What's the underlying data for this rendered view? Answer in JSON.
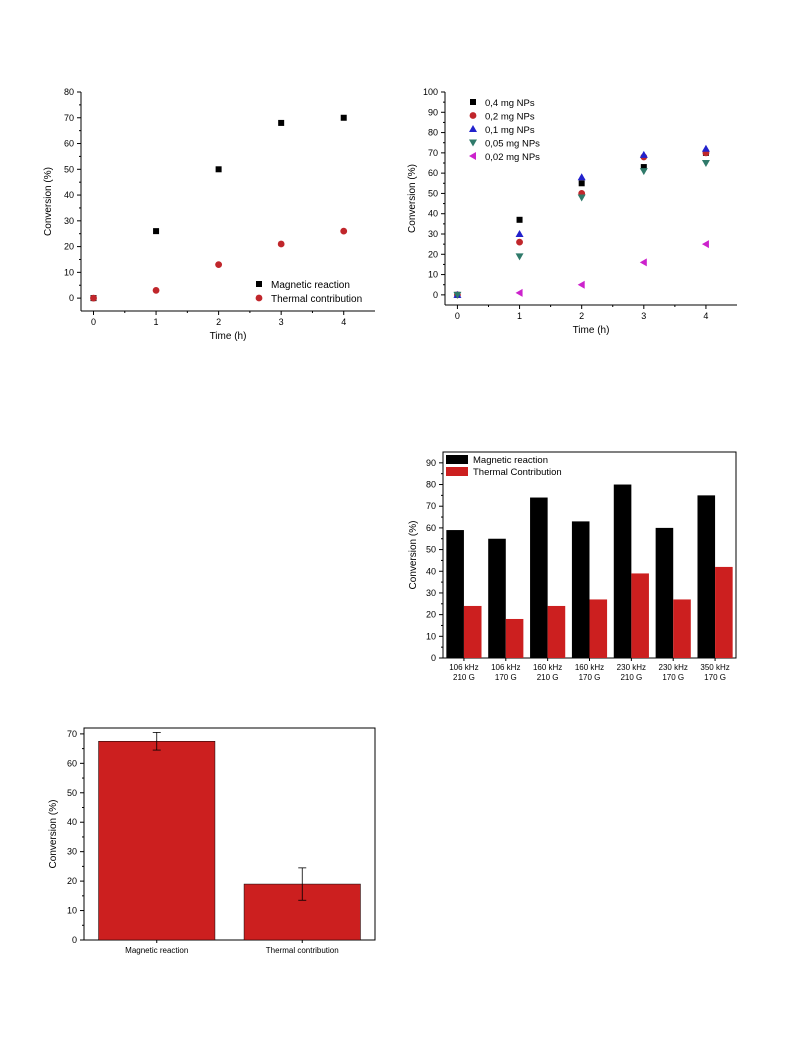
{
  "charts": [
    {
      "type": "scatter",
      "xlabel": "Time (h)",
      "ylabel": "Conversion (%)",
      "xlim": [
        -0.2,
        4.5
      ],
      "ylim": [
        -5,
        80
      ],
      "xticks": [
        0,
        1,
        2,
        3,
        4
      ],
      "yticks": [
        0,
        10,
        20,
        30,
        40,
        50,
        60,
        70,
        80
      ],
      "legend_position": "bottom-right",
      "series": [
        {
          "name": "Magnetic reaction",
          "marker": "square",
          "color": "#000000",
          "x": [
            0,
            1,
            2,
            3,
            4
          ],
          "y": [
            0,
            26,
            50,
            68,
            70
          ]
        },
        {
          "name": "Thermal contribution",
          "marker": "circle",
          "color": "#c0262b",
          "x": [
            0,
            1,
            2,
            3,
            4
          ],
          "y": [
            0,
            3,
            13,
            21,
            26
          ]
        }
      ]
    },
    {
      "type": "scatter",
      "xlabel": "Time (h)",
      "ylabel": "Conversion (%)",
      "xlim": [
        -0.2,
        4.5
      ],
      "ylim": [
        -5,
        100
      ],
      "xticks": [
        0,
        1,
        2,
        3,
        4
      ],
      "yticks": [
        0,
        10,
        20,
        30,
        40,
        50,
        60,
        70,
        80,
        90,
        100
      ],
      "legend_position": "top-left",
      "series": [
        {
          "name": "0,4 mg NPs",
          "marker": "square",
          "color": "#000000",
          "x": [
            0,
            1,
            2,
            3,
            4
          ],
          "y": [
            0,
            37,
            55,
            63,
            70
          ]
        },
        {
          "name": "0,2 mg NPs",
          "marker": "circle",
          "color": "#c0262b",
          "x": [
            0,
            1,
            2,
            3,
            4
          ],
          "y": [
            0,
            26,
            50,
            68,
            70
          ]
        },
        {
          "name": "0,1 mg NPs",
          "marker": "triangle-up",
          "color": "#2222cc",
          "x": [
            0,
            1,
            2,
            3,
            4
          ],
          "y": [
            0,
            30,
            58,
            69,
            72
          ]
        },
        {
          "name": "0,05 mg NPs",
          "marker": "triangle-down",
          "color": "#2f7a6a",
          "x": [
            0,
            1,
            2,
            3,
            4
          ],
          "y": [
            0,
            19,
            48,
            61,
            65
          ]
        },
        {
          "name": "0,02 mg NPs",
          "marker": "triangle-left",
          "color": "#cc22cc",
          "x": [
            1,
            2,
            3,
            4
          ],
          "y": [
            1,
            5,
            16,
            25
          ]
        }
      ]
    },
    {
      "type": "bar",
      "ylabel": "Conversion (%)",
      "ylim": [
        0,
        95
      ],
      "yticks": [
        0,
        10,
        20,
        30,
        40,
        50,
        60,
        70,
        80,
        90
      ],
      "legend_position": "top-left",
      "categories": [
        [
          "106 kHz",
          "210 G"
        ],
        [
          "106 kHz",
          "170 G"
        ],
        [
          "160 kHz",
          "210 G"
        ],
        [
          "160 kHz",
          "170 G"
        ],
        [
          "230 kHz",
          "210 G"
        ],
        [
          "230 kHz",
          "170 G"
        ],
        [
          "350 kHz",
          "170 G"
        ]
      ],
      "series": [
        {
          "name": "Magnetic reaction",
          "color": "#000000",
          "values": [
            59,
            55,
            74,
            63,
            80,
            60,
            75
          ]
        },
        {
          "name": "Thermal Contribution",
          "color": "#cc1f1f",
          "values": [
            24,
            18,
            24,
            27,
            39,
            27,
            42
          ]
        }
      ]
    },
    {
      "type": "bar",
      "ylabel": "Conversion (%)",
      "ylim": [
        0,
        72
      ],
      "yticks": [
        0,
        10,
        20,
        30,
        40,
        50,
        60,
        70
      ],
      "categories": [
        "Magnetic reaction",
        "Thermal contribution"
      ],
      "color": "#cc1f1f",
      "values": [
        67.5,
        19
      ],
      "errors": [
        3,
        5.5
      ]
    }
  ]
}
